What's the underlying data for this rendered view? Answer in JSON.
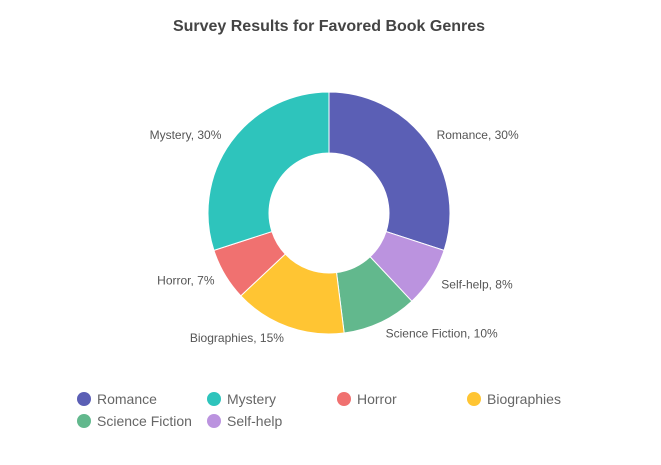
{
  "chart_data": {
    "type": "pie",
    "variant": "donut",
    "title": "Survey Results for Favored Book Genres",
    "categories": [
      "Romance",
      "Mystery",
      "Horror",
      "Biographies",
      "Science Fiction",
      "Self-help"
    ],
    "values": [
      30,
      30,
      7,
      15,
      10,
      8
    ],
    "unit": "%",
    "slice_labels": [
      "Romance, 30%",
      "Self-help, 8%",
      "Science Fiction, 10%",
      "Biographies, 15%",
      "Horror, 7%",
      "Mystery, 30%"
    ],
    "colors": {
      "Romance": "#5b5fb5",
      "Mystery": "#2ec4bc",
      "Horror": "#f07170",
      "Biographies": "#ffc533",
      "Science Fiction": "#62b88d",
      "Self-help": "#bb93df"
    },
    "slice_order_clockwise": [
      "Romance",
      "Self-help",
      "Science Fiction",
      "Biographies",
      "Horror",
      "Mystery"
    ],
    "legend": {
      "position": "bottom",
      "entries": [
        "Romance",
        "Mystery",
        "Horror",
        "Biographies",
        "Science Fiction",
        "Self-help"
      ]
    }
  }
}
